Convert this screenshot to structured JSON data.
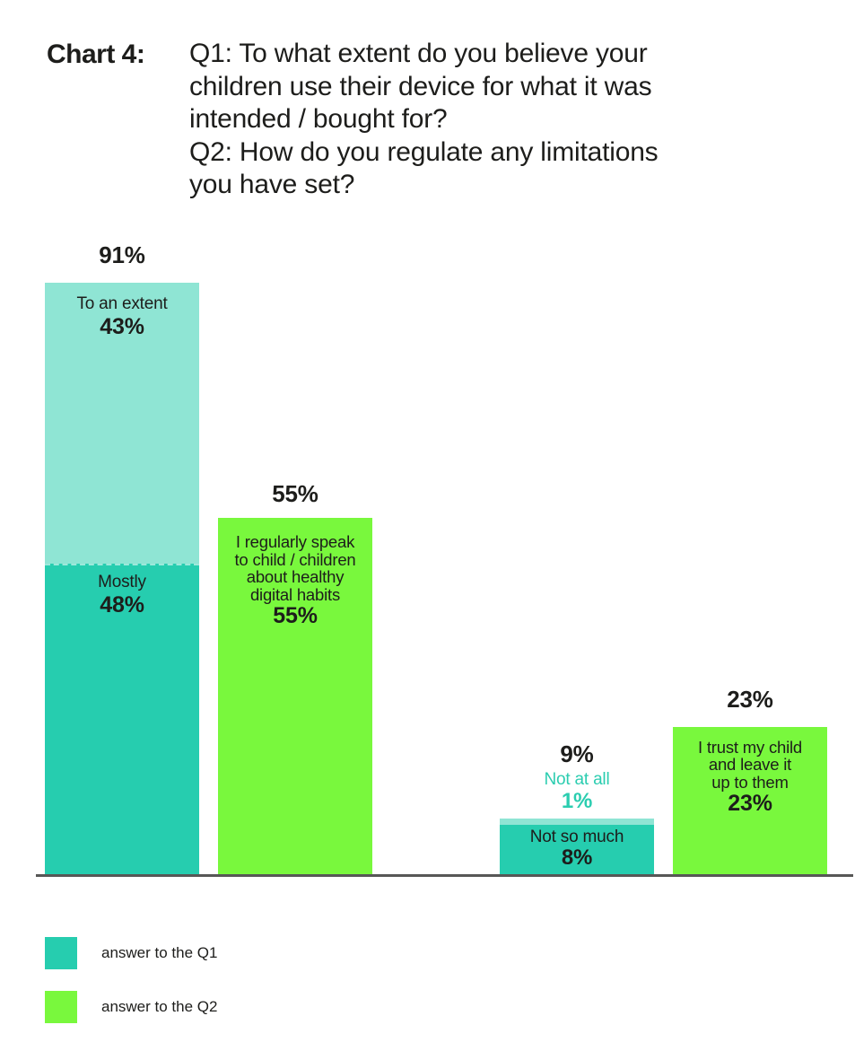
{
  "header": {
    "chart_label": "Chart 4:",
    "question_lines": [
      "Q1: To what extent do you believe your",
      "children use their device for what it was",
      "intended / bought for?",
      "Q2: How do you regulate any limitations",
      "you have set?"
    ]
  },
  "chart_data": {
    "type": "bar",
    "subtype": "stacked",
    "title": "Chart 4: Q1: To what extent do you believe your children use their device for what it was intended / bought for? Q2: How do you regulate any limitations you have set?",
    "unit": "%",
    "ylim": [
      0,
      100
    ],
    "grid": false,
    "axis_line_color": "#575756",
    "legend_position": "bottom-left",
    "legend": [
      {
        "label": "answer to the Q1",
        "color": "#26CDAF",
        "light_color": "#8FE5D4"
      },
      {
        "label": "answer to the Q2",
        "color": "#79F83D"
      }
    ],
    "bars": [
      {
        "series": "Q1",
        "total": 91,
        "total_display": "91%",
        "stack": [
          {
            "label": "Mostly",
            "value": 48,
            "display": "48%",
            "color": "#26CDAF",
            "label_position": "inside"
          },
          {
            "label": "To an extent",
            "value": 43,
            "display": "43%",
            "color": "#8FE5D4",
            "label_position": "inside"
          }
        ]
      },
      {
        "series": "Q2",
        "total": 55,
        "total_display": "55%",
        "stack": [
          {
            "label": "I regularly speak to child / children about healthy digital habits",
            "label_lines": [
              "I regularly speak",
              "to child / children",
              "about healthy",
              "digital habits"
            ],
            "value": 55,
            "display": "55%",
            "color": "#79F83D",
            "label_position": "inside"
          }
        ]
      },
      {
        "series": "Q1",
        "total": 9,
        "total_display": "9%",
        "stack": [
          {
            "label": "Not so much",
            "value": 8,
            "display": "8%",
            "color": "#26CDAF",
            "label_position": "inside"
          },
          {
            "label": "Not at all",
            "value": 1,
            "display": "1%",
            "color": "#8FE5D4",
            "label_position": "above",
            "label_color": "#2BCDB0"
          }
        ]
      },
      {
        "series": "Q2",
        "total": 23,
        "total_display": "23%",
        "stack": [
          {
            "label": "I trust my child and leave it up to them",
            "label_lines": [
              "I trust my child",
              "and leave it",
              "up to them"
            ],
            "value": 23,
            "display": "23%",
            "color": "#79F83D",
            "label_position": "inside"
          }
        ]
      }
    ]
  },
  "colors": {
    "q1_teal": "#26CDAF",
    "q1_light_teal": "#8FE5D4",
    "q2_green": "#79F83D",
    "text_dark": "#1D1D1B",
    "teal_label_text": "#2BCDB0",
    "axis": "#575756",
    "background": "#FFFFFF"
  }
}
